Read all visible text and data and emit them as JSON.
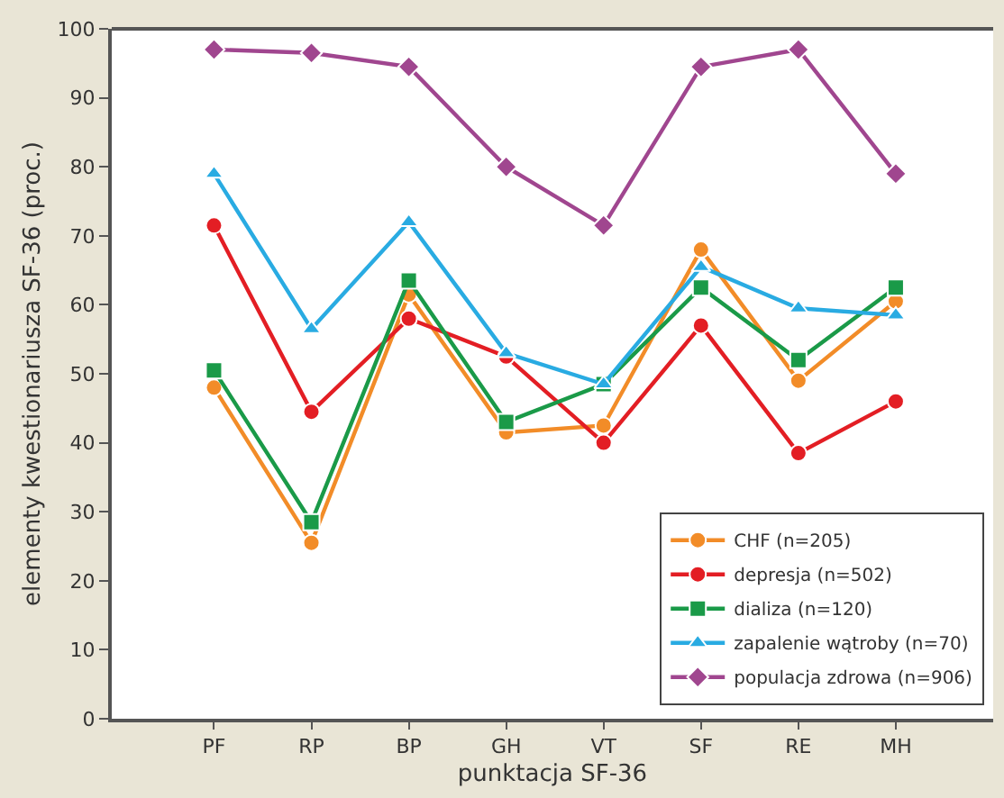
{
  "chart_data": {
    "type": "line",
    "xlabel": "punktacja SF-36",
    "ylabel": "elementy kwestionariusza SF-36 (proc.)",
    "categories": [
      "PF",
      "RP",
      "BP",
      "GH",
      "VT",
      "SF",
      "RE",
      "MH"
    ],
    "ylim": [
      0,
      100
    ],
    "yticks": [
      0,
      10,
      20,
      30,
      40,
      50,
      60,
      70,
      80,
      90,
      100
    ],
    "legend": "bottom right",
    "series": [
      {
        "name": "CHF (n=205)",
        "color": "#f28c28",
        "marker": "circle",
        "values": [
          48,
          25.5,
          61.5,
          41.5,
          42.5,
          68,
          49,
          60.5
        ]
      },
      {
        "name": "depresja (n=502)",
        "color": "#e31e24",
        "marker": "circle",
        "values": [
          71.5,
          44.5,
          58,
          52.5,
          40,
          57,
          38.5,
          46
        ]
      },
      {
        "name": "dializa (n=120)",
        "color": "#1a9a48",
        "marker": "square",
        "values": [
          50.5,
          28.5,
          63.5,
          43,
          48.5,
          62.5,
          52,
          62.5
        ]
      },
      {
        "name": "zapalenie wątroby (n=70)",
        "color": "#29abe2",
        "marker": "triangle",
        "values": [
          79,
          56.5,
          72,
          53,
          48.5,
          65.5,
          59.5,
          58.5
        ]
      },
      {
        "name": "populacja zdrowa (n=906)",
        "color": "#a0468f",
        "marker": "diamond",
        "values": [
          97,
          96.5,
          94.5,
          80,
          71.5,
          94.5,
          97,
          79
        ]
      }
    ]
  }
}
